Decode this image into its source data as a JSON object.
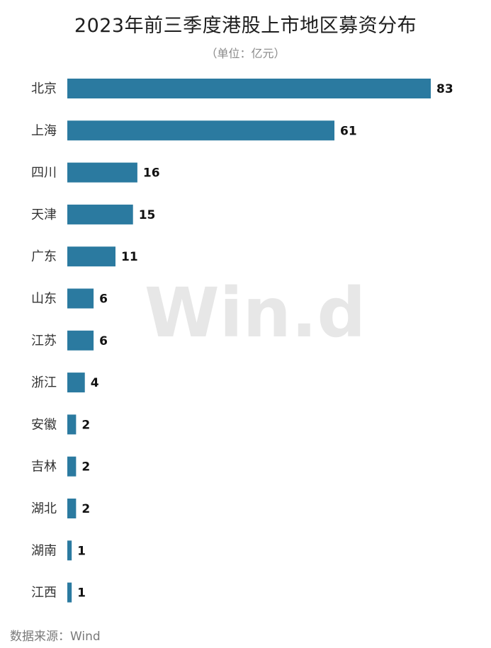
{
  "chart_data": {
    "type": "bar",
    "orientation": "horizontal",
    "title": "2023年前三季度港股上市地区募资分布",
    "subtitle": "（单位：亿元）",
    "categories": [
      "北京",
      "上海",
      "四川",
      "天津",
      "广东",
      "山东",
      "江苏",
      "浙江",
      "安徽",
      "吉林",
      "湖北",
      "湖南",
      "江西"
    ],
    "values": [
      83,
      61,
      16,
      15,
      11,
      6,
      6,
      4,
      2,
      2,
      2,
      1,
      1
    ],
    "bar_color": "#2b7aa0",
    "xlim": [
      0,
      83
    ],
    "grid": false,
    "legend": "none"
  },
  "watermark": "Win.d",
  "source_note": "数据来源：Wind"
}
